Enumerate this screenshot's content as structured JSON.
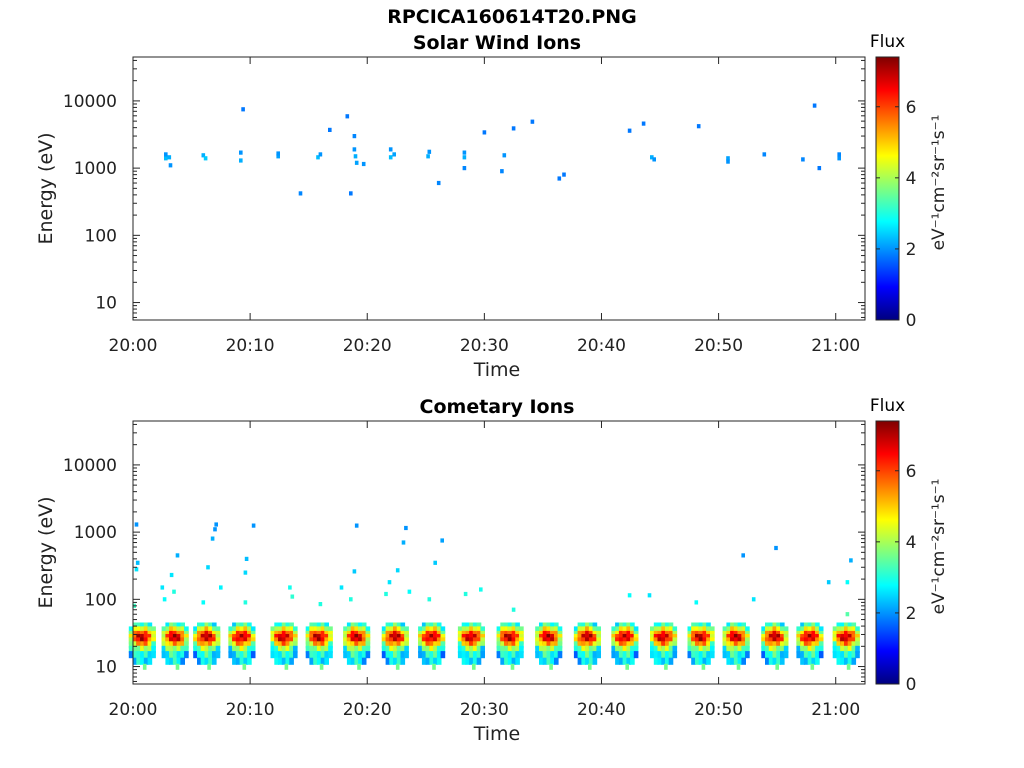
{
  "figure": {
    "title": "RPCICA160614T20.PNG"
  },
  "colormap": {
    "name": "jet",
    "stops": [
      "#00007f",
      "#0000ff",
      "#007fff",
      "#00ffff",
      "#7fff7f",
      "#ffff00",
      "#ff7f00",
      "#ff0000",
      "#7f0000"
    ]
  },
  "chart_data": [
    {
      "type": "heatmap",
      "title": "Solar Wind Ions",
      "xlabel": "Time",
      "ylabel": "Energy (eV)",
      "x_ticks": [
        "20:00",
        "20:10",
        "20:20",
        "20:30",
        "20:40",
        "20:50",
        "21:00"
      ],
      "xlim_minutes": [
        0,
        62.5
      ],
      "y_scale": "log",
      "y_ticks": [
        "10",
        "100",
        "1000",
        "10000"
      ],
      "ylim": [
        5.5,
        45000
      ],
      "colorbar": {
        "title": "Flux",
        "unit": "eV⁻¹cm⁻²sr⁻¹s⁻¹",
        "ticks": [
          "0",
          "2",
          "4",
          "6"
        ],
        "range": [
          0,
          7.4
        ]
      },
      "cells": [
        [
          2.8,
          1400,
          2.3
        ],
        [
          2.8,
          1600,
          2.0
        ],
        [
          3.1,
          1450,
          2.2
        ],
        [
          3.2,
          1100,
          2.0
        ],
        [
          6.0,
          1550,
          2.2
        ],
        [
          6.2,
          1400,
          2.4
        ],
        [
          9.2,
          1700,
          2.0
        ],
        [
          9.2,
          1300,
          2.2
        ],
        [
          9.4,
          7500,
          1.8
        ],
        [
          12.4,
          1500,
          2.1
        ],
        [
          12.4,
          1650,
          2.0
        ],
        [
          14.3,
          420,
          1.9
        ],
        [
          15.8,
          1450,
          2.3
        ],
        [
          16.0,
          1600,
          2.0
        ],
        [
          16.8,
          3700,
          1.8
        ],
        [
          18.3,
          5900,
          1.8
        ],
        [
          18.6,
          420,
          1.8
        ],
        [
          18.9,
          3000,
          1.9
        ],
        [
          18.9,
          1900,
          2.0
        ],
        [
          19.0,
          1500,
          2.2
        ],
        [
          19.1,
          1200,
          2.1
        ],
        [
          19.7,
          1150,
          2.0
        ],
        [
          22.0,
          1450,
          2.3
        ],
        [
          22.0,
          1900,
          2.0
        ],
        [
          22.3,
          1600,
          2.1
        ],
        [
          25.2,
          1500,
          2.2
        ],
        [
          25.3,
          1750,
          2.0
        ],
        [
          26.1,
          600,
          1.9
        ],
        [
          28.3,
          1450,
          2.2
        ],
        [
          28.3,
          1700,
          2.0
        ],
        [
          28.3,
          1000,
          1.9
        ],
        [
          30.0,
          3400,
          1.8
        ],
        [
          31.5,
          900,
          1.9
        ],
        [
          31.7,
          1550,
          2.0
        ],
        [
          32.5,
          3900,
          1.8
        ],
        [
          34.1,
          4900,
          1.8
        ],
        [
          36.4,
          700,
          1.8
        ],
        [
          36.8,
          800,
          1.8
        ],
        [
          42.4,
          3600,
          1.8
        ],
        [
          43.6,
          4600,
          1.8
        ],
        [
          44.3,
          1450,
          2.2
        ],
        [
          44.5,
          1350,
          2.0
        ],
        [
          48.3,
          4200,
          1.8
        ],
        [
          50.8,
          1400,
          2.1
        ],
        [
          50.8,
          1250,
          2.0
        ],
        [
          53.9,
          1600,
          1.9
        ],
        [
          57.2,
          1350,
          1.9
        ],
        [
          58.2,
          8500,
          1.8
        ],
        [
          58.6,
          1000,
          1.8
        ],
        [
          60.3,
          1400,
          2.0
        ],
        [
          60.3,
          1600,
          1.9
        ]
      ]
    },
    {
      "type": "heatmap",
      "title": "Cometary Ions",
      "xlabel": "Time",
      "ylabel": "Energy (eV)",
      "x_ticks": [
        "20:00",
        "20:10",
        "20:20",
        "20:30",
        "20:40",
        "20:50",
        "21:00"
      ],
      "xlim_minutes": [
        0,
        62.5
      ],
      "y_scale": "log",
      "y_ticks": [
        "10",
        "100",
        "1000",
        "10000"
      ],
      "ylim": [
        5.5,
        45000
      ],
      "colorbar": {
        "title": "Flux",
        "unit": "eV⁻¹cm⁻²sr⁻¹s⁻¹",
        "ticks": [
          "0",
          "2",
          "4",
          "6"
        ],
        "range": [
          0,
          7.4
        ]
      },
      "band_repeat_minutes": 3.25,
      "band_centers_minutes": [
        0.8,
        3.6,
        6.3,
        9.3,
        12.9,
        15.9,
        19.1,
        22.4,
        25.5,
        28.9,
        32.2,
        35.5,
        38.8,
        42.0,
        45.3,
        48.5,
        51.5,
        54.8,
        57.8,
        60.9
      ],
      "band_profile": [
        [
          40,
          3.4
        ],
        [
          35,
          4.8
        ],
        [
          30,
          6.2
        ],
        [
          27,
          7.0
        ],
        [
          24,
          6.8
        ],
        [
          21,
          5.6
        ],
        [
          18,
          4.2
        ],
        [
          15,
          3.2
        ],
        [
          12,
          2.8
        ]
      ],
      "cells": [
        [
          0.3,
          1300,
          2.0
        ],
        [
          0.4,
          350,
          2.3
        ],
        [
          0.3,
          280,
          2.6
        ],
        [
          0.1,
          80,
          3.2
        ],
        [
          2.5,
          150,
          2.6
        ],
        [
          2.7,
          100,
          2.8
        ],
        [
          3.3,
          230,
          2.6
        ],
        [
          3.5,
          130,
          3.0
        ],
        [
          3.8,
          450,
          2.2
        ],
        [
          6.0,
          90,
          2.8
        ],
        [
          6.4,
          300,
          2.5
        ],
        [
          6.8,
          800,
          2.2
        ],
        [
          7.0,
          1100,
          2.0
        ],
        [
          7.1,
          1300,
          2.0
        ],
        [
          7.5,
          150,
          2.7
        ],
        [
          9.6,
          250,
          2.5
        ],
        [
          9.7,
          400,
          2.3
        ],
        [
          9.6,
          90,
          3.0
        ],
        [
          10.3,
          1250,
          2.0
        ],
        [
          13.4,
          150,
          2.9
        ],
        [
          13.6,
          110,
          3.1
        ],
        [
          16.0,
          85,
          3.0
        ],
        [
          17.8,
          150,
          2.6
        ],
        [
          18.6,
          100,
          3.0
        ],
        [
          18.9,
          260,
          2.4
        ],
        [
          19.1,
          1250,
          2.0
        ],
        [
          21.6,
          120,
          3.0
        ],
        [
          21.9,
          180,
          2.6
        ],
        [
          22.6,
          270,
          2.5
        ],
        [
          23.1,
          700,
          2.2
        ],
        [
          23.3,
          1150,
          2.0
        ],
        [
          23.6,
          130,
          2.8
        ],
        [
          25.3,
          100,
          3.0
        ],
        [
          25.8,
          350,
          2.4
        ],
        [
          26.4,
          750,
          2.1
        ],
        [
          28.4,
          120,
          3.0
        ],
        [
          29.7,
          140,
          2.9
        ],
        [
          32.5,
          70,
          3.0
        ],
        [
          42.4,
          115,
          2.8
        ],
        [
          44.1,
          115,
          2.6
        ],
        [
          48.1,
          90,
          2.8
        ],
        [
          52.1,
          450,
          2.0
        ],
        [
          53.0,
          100,
          2.6
        ],
        [
          54.9,
          580,
          2.0
        ],
        [
          59.4,
          180,
          2.4
        ],
        [
          61.0,
          180,
          2.8
        ],
        [
          61.3,
          380,
          2.2
        ],
        [
          61.0,
          60,
          3.4
        ]
      ]
    }
  ]
}
